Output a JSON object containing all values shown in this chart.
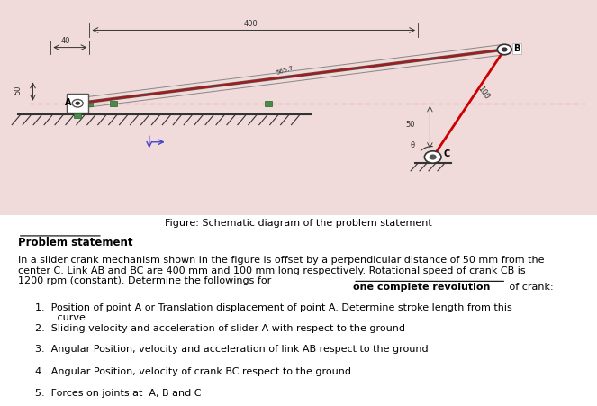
{
  "fig_caption": "Figure: Schematic diagram of the problem statement",
  "problem_title": "Problem statement",
  "problem_body": "In a slider crank mechanism shown in the figure is offset by a perpendicular distance of 50 mm from the\ncenter C. Link AB and BC are 400 mm and 100 mm long respectively. Rotational speed of crank CB is\n1200 rpm (constant). Determine the followings for ",
  "bold_underline_text": "one complete revolution",
  "problem_body2": " of crank:",
  "items": [
    "Position of point A or Translation displacement of point A. Determine stroke length from this\n       curve",
    "Sliding velocity and acceleration of slider A with respect to the ground",
    "Angular Position, velocity and acceleration of link AB respect to the ground",
    "Angular Position, velocity of crank BC respect to the ground",
    "Forces on joints at  A, B and C"
  ],
  "bg_color": "#f5e8e8",
  "diagram_bg": "#f0dada",
  "slider_color": "#4a7a4a",
  "link_color_dark": "#333333",
  "link_color_red": "#cc0000",
  "hatch_color": "#333333",
  "dim_color": "#333333",
  "ground_color": "#333333"
}
